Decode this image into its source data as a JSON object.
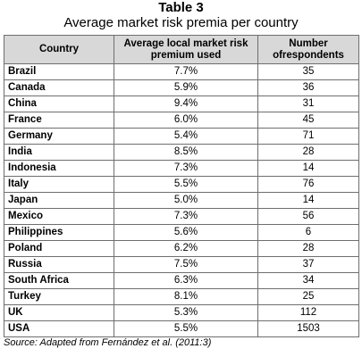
{
  "table_number": "Table 3",
  "title": "Average market risk premia per country",
  "headers": {
    "country": "Country",
    "premium": "Average local market risk premium used",
    "respondents": "Number ofrespondents"
  },
  "rows": [
    {
      "country": "Brazil",
      "premium": "7.7%",
      "respondents": "35"
    },
    {
      "country": "Canada",
      "premium": "5.9%",
      "respondents": "36"
    },
    {
      "country": "China",
      "premium": "9.4%",
      "respondents": "31"
    },
    {
      "country": "France",
      "premium": "6.0%",
      "respondents": "45"
    },
    {
      "country": "Germany",
      "premium": "5.4%",
      "respondents": "71"
    },
    {
      "country": "India",
      "premium": "8.5%",
      "respondents": "28"
    },
    {
      "country": "Indonesia",
      "premium": "7.3%",
      "respondents": "14"
    },
    {
      "country": "Italy",
      "premium": "5.5%",
      "respondents": "76"
    },
    {
      "country": "Japan",
      "premium": "5.0%",
      "respondents": "14"
    },
    {
      "country": "Mexico",
      "premium": "7.3%",
      "respondents": "56"
    },
    {
      "country": "Philippines",
      "premium": "5.6%",
      "respondents": "6"
    },
    {
      "country": "Poland",
      "premium": "6.2%",
      "respondents": "28"
    },
    {
      "country": "Russia",
      "premium": "7.5%",
      "respondents": "37"
    },
    {
      "country": "South Africa",
      "premium": "6.3%",
      "respondents": "34"
    },
    {
      "country": "Turkey",
      "premium": "8.1%",
      "respondents": "25"
    },
    {
      "country": "UK",
      "premium": "5.3%",
      "respondents": "112"
    },
    {
      "country": "USA",
      "premium": "5.5%",
      "respondents": "1503"
    }
  ],
  "source": "Source: Adapted from Fernández et al. (2011:3)",
  "colors": {
    "header_background": "#d8d8d8",
    "border": "#6e6e6e"
  }
}
